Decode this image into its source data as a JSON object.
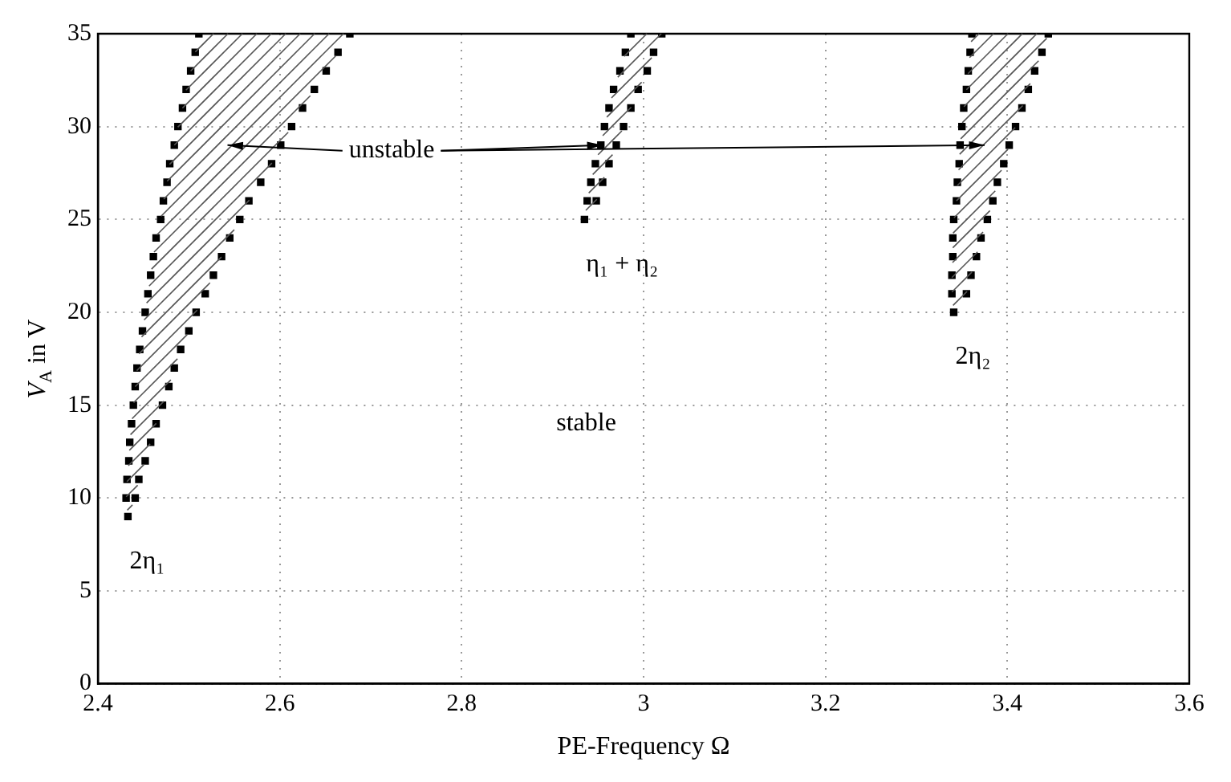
{
  "chart_data": {
    "type": "scatter",
    "xlabel": "PE-Frequency Ω",
    "ylabel": "V$_{A}$ in V",
    "xlim": [
      2.4,
      3.6
    ],
    "xticks": [
      2.4,
      2.6,
      2.8,
      3,
      3.2,
      3.4,
      3.6
    ],
    "ylim": [
      0,
      35
    ],
    "yticks": [
      0,
      5,
      10,
      15,
      20,
      25,
      30,
      35
    ],
    "grid": true,
    "legend": false,
    "marker": "square",
    "series": [
      {
        "color": "#000000",
        "x": [
          2.433,
          2.431,
          2.432,
          2.434,
          2.435,
          2.437,
          2.439,
          2.441,
          2.443,
          2.446,
          2.449,
          2.452,
          2.455,
          2.458,
          2.461,
          2.464,
          2.469,
          2.472,
          2.476,
          2.479,
          2.484,
          2.488,
          2.493,
          2.497,
          2.502,
          2.507,
          2.511
        ],
        "values": [
          9,
          10,
          11,
          12,
          13,
          14,
          15,
          16,
          17,
          18,
          19,
          20,
          21,
          22,
          23,
          24,
          25,
          26,
          27,
          28,
          29,
          30,
          31,
          32,
          33,
          34,
          35
        ]
      },
      {
        "color": "#000000",
        "x": [
          2.441,
          2.445,
          2.452,
          2.458,
          2.464,
          2.471,
          2.478,
          2.484,
          2.491,
          2.5,
          2.508,
          2.518,
          2.527,
          2.536,
          2.545,
          2.556,
          2.566,
          2.579,
          2.591,
          2.601,
          2.613,
          2.625,
          2.638,
          2.651,
          2.664,
          2.677
        ],
        "values": [
          10,
          11,
          12,
          13,
          14,
          15,
          16,
          17,
          18,
          19,
          20,
          21,
          22,
          23,
          24,
          25,
          26,
          27,
          28,
          29,
          30,
          31,
          32,
          33,
          34,
          35
        ]
      },
      {
        "color": "#000000",
        "x": [
          2.935,
          2.938,
          2.942,
          2.947,
          2.953,
          2.957,
          2.962,
          2.967,
          2.974,
          2.98,
          2.986
        ],
        "values": [
          25,
          26,
          27,
          28,
          29,
          30,
          31,
          32,
          33,
          34,
          35
        ]
      },
      {
        "color": "#000000",
        "x": [
          2.948,
          2.955,
          2.962,
          2.97,
          2.978,
          2.986,
          2.994,
          3.004,
          3.011,
          3.02
        ],
        "values": [
          26,
          27,
          28,
          29,
          30,
          31,
          32,
          33,
          34,
          35
        ]
      },
      {
        "color": "#000000",
        "x": [
          3.341,
          3.339,
          3.339,
          3.34,
          3.34,
          3.341,
          3.344,
          3.345,
          3.347,
          3.348,
          3.35,
          3.352,
          3.355,
          3.357,
          3.359,
          3.361
        ],
        "values": [
          20,
          21,
          22,
          23,
          24,
          25,
          26,
          27,
          28,
          29,
          30,
          31,
          32,
          33,
          34,
          35
        ]
      },
      {
        "color": "#000000",
        "x": [
          3.355,
          3.36,
          3.366,
          3.371,
          3.378,
          3.384,
          3.389,
          3.396,
          3.402,
          3.409,
          3.416,
          3.423,
          3.43,
          3.438,
          3.445
        ],
        "values": [
          21,
          22,
          23,
          24,
          25,
          26,
          27,
          28,
          29,
          30,
          31,
          32,
          33,
          34,
          35
        ]
      }
    ],
    "annotations": [
      {
        "text": "unstable",
        "x": 2.955,
        "y": 29
      },
      "2η₁",
      "η₁ + η₂",
      "2η₂",
      "stable"
    ]
  }
}
